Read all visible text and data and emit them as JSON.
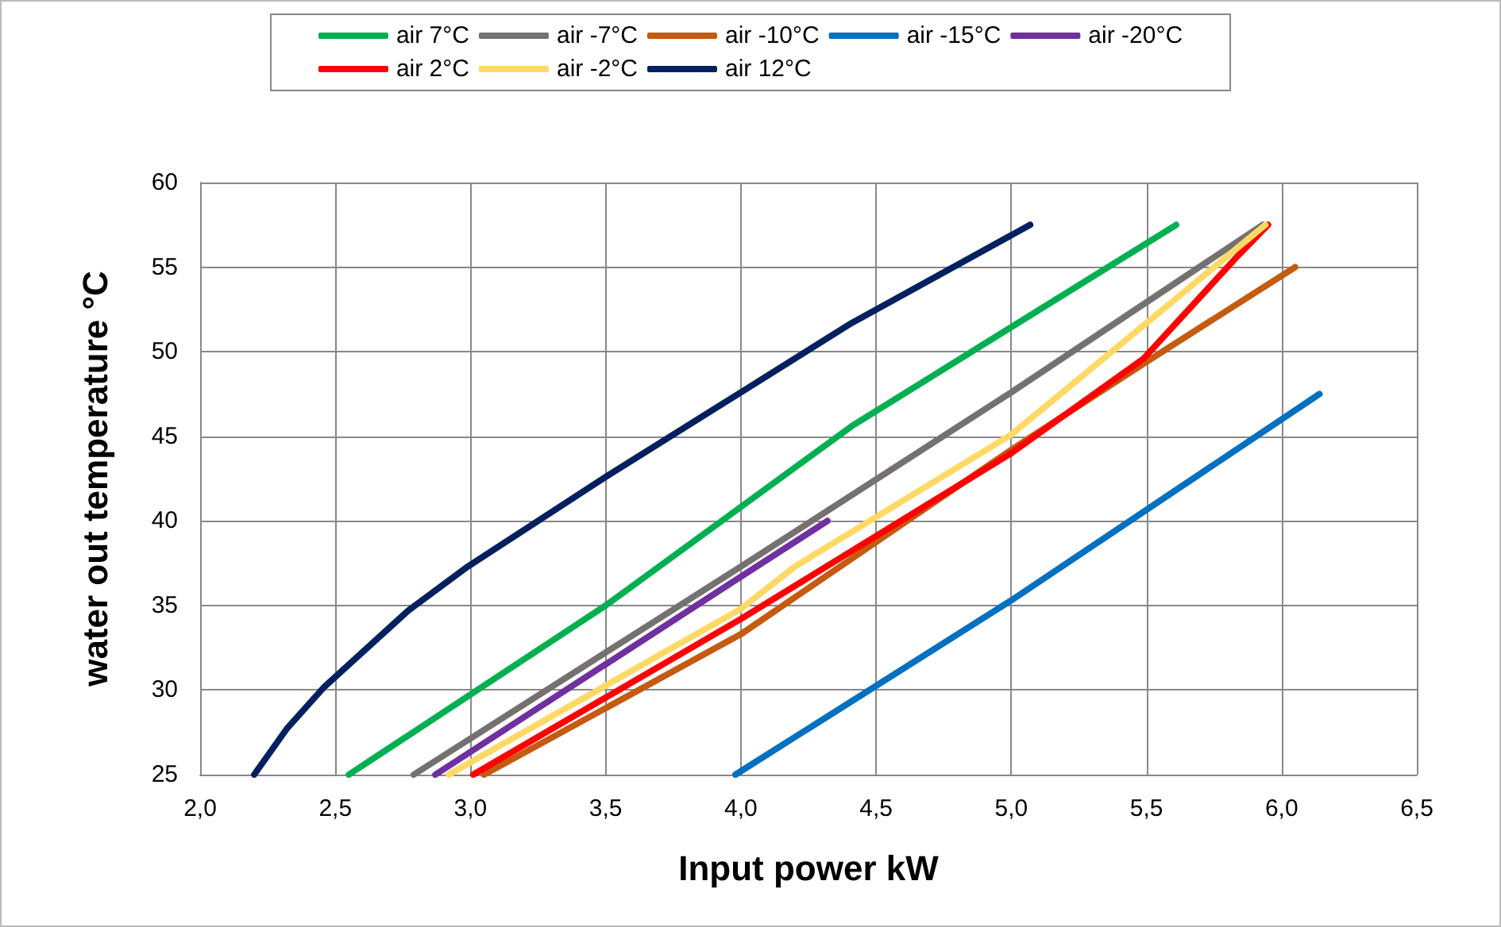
{
  "chart_data": {
    "type": "line",
    "xlabel": "Input power kW",
    "ylabel": "water out temperature °C",
    "xlim": [
      2,
      6.5
    ],
    "xticks": [
      {
        "value": 2,
        "label": "2,0"
      },
      {
        "value": 2.5,
        "label": "2,5"
      },
      {
        "value": 3,
        "label": "3,0"
      },
      {
        "value": 3.5,
        "label": "3,5"
      },
      {
        "value": 4,
        "label": "4,0"
      },
      {
        "value": 4.5,
        "label": "4,5"
      },
      {
        "value": 5,
        "label": "5,0"
      },
      {
        "value": 5.5,
        "label": "5,5"
      },
      {
        "value": 6,
        "label": "6,0"
      },
      {
        "value": 6.5,
        "label": "6,5"
      }
    ],
    "ylim": [
      25,
      60
    ],
    "yticks": [
      25,
      30,
      35,
      40,
      45,
      50,
      55,
      60
    ],
    "grid": true,
    "legend": "top",
    "marker": "none",
    "line_style": "solid",
    "series": [
      {
        "name": "air 7°C",
        "color": "#00b050",
        "x": [
          2.55,
          3.5,
          4.41,
          5.61
        ],
        "values": [
          25,
          35,
          45.6,
          57.5
        ]
      },
      {
        "name": "air -7°C",
        "color": "#767171",
        "x": [
          2.79,
          4.0,
          5.0,
          5.93
        ],
        "values": [
          25,
          37.3,
          47.6,
          57.5
        ]
      },
      {
        "name": "air -10°C",
        "color": "#c55a11",
        "x": [
          3.05,
          4.0,
          5.0,
          5.49,
          6.05
        ],
        "values": [
          25,
          33.3,
          44.2,
          49.3,
          55
        ]
      },
      {
        "name": "air -15°C",
        "color": "#0070c0",
        "x": [
          3.98,
          5.0,
          6.14
        ],
        "values": [
          25,
          35.3,
          47.5
        ]
      },
      {
        "name": "air -20°C",
        "color": "#7030a0",
        "x": [
          2.87,
          4.0,
          4.32
        ],
        "values": [
          25,
          36.7,
          40
        ]
      },
      {
        "name": "air 2°C",
        "color": "#ff0000",
        "x": [
          3.01,
          4.0,
          5.0,
          5.49,
          5.84,
          5.95
        ],
        "values": [
          25,
          34.2,
          44,
          49.6,
          55.7,
          57.5
        ]
      },
      {
        "name": "air -2°C",
        "color": "#ffd966",
        "x": [
          2.92,
          4.0,
          4.2,
          5.0,
          5.94
        ],
        "values": [
          25,
          34.8,
          37.3,
          45.1,
          57.5
        ]
      },
      {
        "name": "air 12°C",
        "color": "#002060",
        "x": [
          2.2,
          2.32,
          2.46,
          2.77,
          2.99,
          3.5,
          4.0,
          4.41,
          5.07
        ],
        "values": [
          25,
          27.7,
          30.2,
          34.7,
          37.3,
          42.6,
          47.6,
          51.7,
          57.5
        ]
      }
    ]
  }
}
